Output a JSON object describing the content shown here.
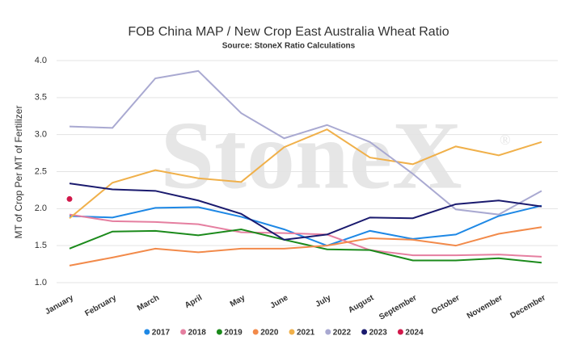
{
  "chart_data": {
    "type": "line",
    "title": "FOB China MAP / New Crop East Australia Wheat Ratio",
    "subtitle": "Source: StoneX Ratio Calculations",
    "y_label": "MT of Crop Per MT of Fertilizer",
    "watermark": "StoneX",
    "watermark_mark": "®",
    "categories": [
      "January",
      "February",
      "March",
      "April",
      "May",
      "June",
      "July",
      "August",
      "September",
      "October",
      "November",
      "December"
    ],
    "ylim": [
      1.0,
      4.0
    ],
    "yticks": [
      {
        "value": 1.0,
        "label": "1.0"
      },
      {
        "value": 1.5,
        "label": "1.5"
      },
      {
        "value": 2.0,
        "label": "2.0"
      },
      {
        "value": 2.5,
        "label": "2.5"
      },
      {
        "value": 3.0,
        "label": "3.0"
      },
      {
        "value": 3.5,
        "label": "3.5"
      },
      {
        "value": 4.0,
        "label": "4.0"
      }
    ],
    "grid": true,
    "legend": "bottom",
    "series": [
      {
        "name": "2017",
        "color": "#1e88e5",
        "values": [
          1.9,
          1.88,
          2.01,
          2.02,
          1.89,
          1.72,
          1.5,
          1.7,
          1.59,
          1.65,
          1.9,
          2.04
        ]
      },
      {
        "name": "2018",
        "color": "#e57fa0",
        "values": [
          1.92,
          1.83,
          1.82,
          1.79,
          1.68,
          1.67,
          1.65,
          1.44,
          1.37,
          1.37,
          1.38,
          1.35
        ]
      },
      {
        "name": "2019",
        "color": "#1b8a1b",
        "values": [
          1.46,
          1.69,
          1.7,
          1.64,
          1.72,
          1.58,
          1.45,
          1.44,
          1.3,
          1.3,
          1.33,
          1.27
        ]
      },
      {
        "name": "2020",
        "color": "#f28a4a",
        "values": [
          1.23,
          1.34,
          1.46,
          1.41,
          1.46,
          1.46,
          1.5,
          1.6,
          1.58,
          1.5,
          1.66,
          1.75
        ]
      },
      {
        "name": "2021",
        "color": "#f0b04a",
        "values": [
          1.87,
          2.35,
          2.52,
          2.41,
          2.36,
          2.83,
          3.07,
          2.69,
          2.6,
          2.84,
          2.72,
          2.9
        ]
      },
      {
        "name": "2022",
        "color": "#a9a9d1",
        "values": [
          3.11,
          3.09,
          3.76,
          3.86,
          3.29,
          2.95,
          3.13,
          2.9,
          2.47,
          1.99,
          1.92,
          2.24
        ]
      },
      {
        "name": "2023",
        "color": "#1a1a6e",
        "values": [
          2.34,
          2.26,
          2.24,
          2.11,
          1.93,
          1.58,
          1.65,
          1.88,
          1.87,
          2.06,
          2.11,
          2.03
        ]
      },
      {
        "name": "2024",
        "color": "#d1184a",
        "values": [
          2.13,
          null,
          null,
          null,
          null,
          null,
          null,
          null,
          null,
          null,
          null,
          null
        ]
      }
    ]
  }
}
